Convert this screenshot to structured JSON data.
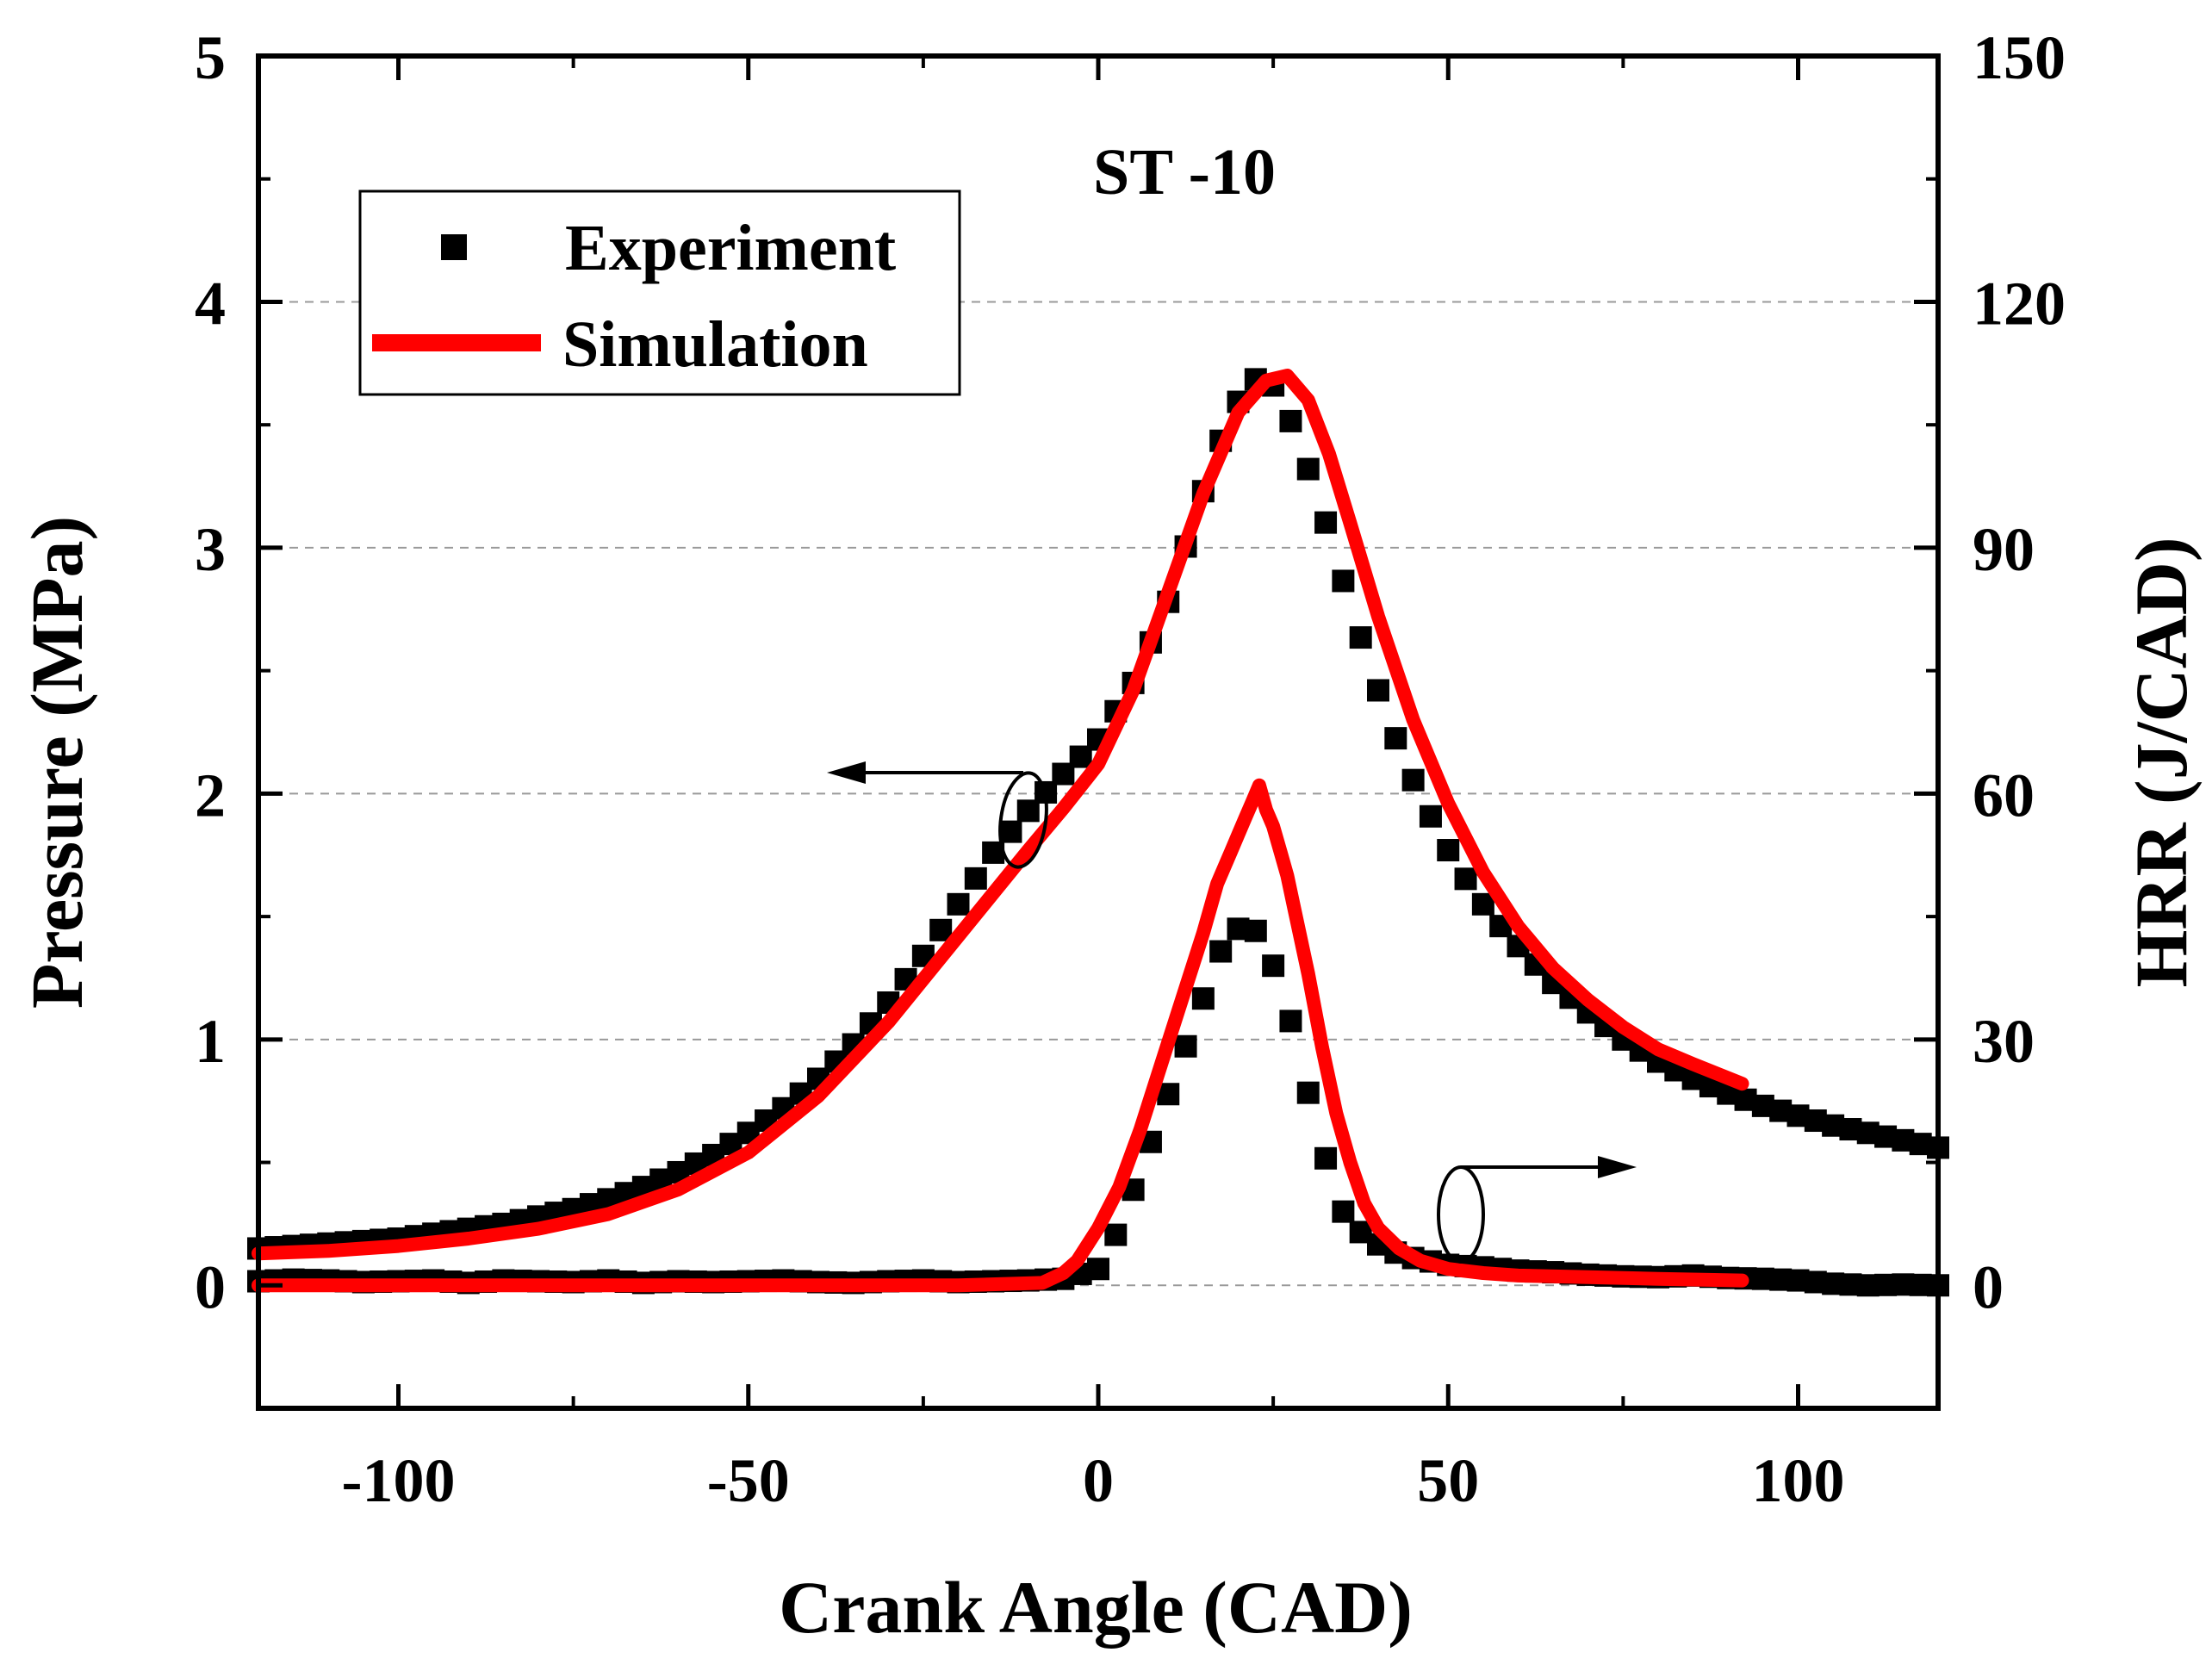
{
  "chart_data": {
    "type": "line",
    "title": "",
    "annotation": "ST -10",
    "xlabel": "Crank Angle (CAD)",
    "ylabel_left": "Pressure (MPa)",
    "ylabel_right": "HRR (J/CAD)",
    "xlim": [
      -120,
      120
    ],
    "ylim_left": [
      -0.5,
      5
    ],
    "ylim_right": [
      -15,
      150
    ],
    "x_ticks": [
      "-100",
      "-50",
      "0",
      "50",
      "100"
    ],
    "y_left_ticks": [
      "0",
      "1",
      "2",
      "3",
      "4",
      "5"
    ],
    "y_right_ticks": [
      "0",
      "30",
      "60",
      "90",
      "120",
      "150"
    ],
    "grid": "horizontal dashed",
    "legend_position": "top-left",
    "legend": [
      {
        "label": "Experiment",
        "marker": "square",
        "color": "#000000"
      },
      {
        "label": "Simulation",
        "marker": "line",
        "color": "#ff0000"
      }
    ],
    "series": [
      {
        "name": "Experiment",
        "quantity": "Pressure",
        "axis": "left",
        "color": "#000000",
        "x": [
          -120,
          -115,
          -110,
          -105,
          -100,
          -95,
          -90,
          -85,
          -80,
          -75,
          -70,
          -65,
          -60,
          -55,
          -50,
          -45,
          -40,
          -35,
          -30,
          -25,
          -20,
          -15,
          -10,
          -5,
          0,
          5,
          10,
          13,
          16,
          19,
          22,
          24,
          26,
          28,
          30,
          32,
          34,
          36,
          38,
          40,
          42,
          44,
          46,
          48,
          50,
          53,
          56,
          60,
          65,
          70,
          75,
          80,
          85,
          90,
          95,
          100,
          105,
          110,
          115,
          120
        ],
        "y": [
          0.15,
          0.16,
          0.17,
          0.18,
          0.19,
          0.21,
          0.23,
          0.25,
          0.28,
          0.31,
          0.35,
          0.4,
          0.46,
          0.53,
          0.62,
          0.72,
          0.84,
          0.98,
          1.15,
          1.34,
          1.55,
          1.76,
          1.93,
          2.08,
          2.22,
          2.45,
          2.78,
          3.05,
          3.32,
          3.55,
          3.68,
          3.7,
          3.62,
          3.48,
          3.32,
          3.15,
          2.96,
          2.77,
          2.59,
          2.42,
          2.26,
          2.12,
          1.99,
          1.88,
          1.77,
          1.63,
          1.51,
          1.38,
          1.23,
          1.11,
          1.0,
          0.91,
          0.84,
          0.78,
          0.73,
          0.69,
          0.65,
          0.62,
          0.59,
          0.56
        ]
      },
      {
        "name": "Simulation",
        "quantity": "Pressure",
        "axis": "left",
        "color": "#ff0000",
        "x": [
          -120,
          -110,
          -100,
          -90,
          -80,
          -70,
          -60,
          -50,
          -40,
          -30,
          -20,
          -10,
          -5,
          0,
          5,
          10,
          15,
          20,
          24,
          27,
          30,
          33,
          36,
          40,
          45,
          50,
          55,
          60,
          65,
          70,
          75,
          80,
          85,
          92
        ],
        "y": [
          0.13,
          0.14,
          0.16,
          0.19,
          0.23,
          0.29,
          0.39,
          0.54,
          0.77,
          1.07,
          1.42,
          1.77,
          1.94,
          2.12,
          2.42,
          2.82,
          3.22,
          3.55,
          3.68,
          3.7,
          3.6,
          3.38,
          3.1,
          2.72,
          2.3,
          1.96,
          1.68,
          1.46,
          1.29,
          1.16,
          1.05,
          0.96,
          0.9,
          0.82
        ]
      },
      {
        "name": "Experiment",
        "quantity": "HRR",
        "axis": "right",
        "color": "#000000",
        "x": [
          -120,
          -115,
          -110,
          -105,
          -100,
          -95,
          -90,
          -85,
          -80,
          -75,
          -70,
          -65,
          -60,
          -55,
          -50,
          -45,
          -40,
          -35,
          -30,
          -25,
          -20,
          -15,
          -10,
          -5,
          0,
          3,
          6,
          9,
          12,
          15,
          17,
          19,
          21,
          23,
          25,
          27,
          29,
          31,
          33,
          35,
          38,
          41,
          44,
          47,
          50,
          55,
          60,
          65,
          70,
          75,
          80,
          85,
          90,
          95,
          100,
          105,
          110,
          115,
          120
        ],
        "y": [
          0.5,
          0.7,
          0.6,
          0.4,
          0.5,
          0.6,
          0.3,
          0.6,
          0.5,
          0.4,
          0.6,
          0.3,
          0.5,
          0.4,
          0.5,
          0.6,
          0.4,
          0.3,
          0.5,
          0.6,
          0.4,
          0.5,
          0.6,
          0.8,
          2.0,
          7,
          14,
          21,
          28,
          35,
          40,
          43,
          44,
          43,
          39,
          34,
          27,
          20,
          14,
          9,
          6,
          4.5,
          3.5,
          3.0,
          2.5,
          2.2,
          1.8,
          1.6,
          1.3,
          1.1,
          1.0,
          1.2,
          0.9,
          0.8,
          0.6,
          0.2,
          0.0,
          0.1,
          0.0
        ]
      },
      {
        "name": "Simulation",
        "quantity": "HRR",
        "axis": "right",
        "color": "#ff0000",
        "x": [
          -120,
          -100,
          -80,
          -60,
          -40,
          -20,
          -8,
          -5,
          -3,
          0,
          3,
          6,
          9,
          12,
          15,
          17,
          19,
          20,
          21,
          22,
          23,
          24,
          25,
          26,
          27,
          28,
          30,
          32,
          34,
          36,
          38,
          40,
          43,
          46,
          50,
          55,
          60,
          70,
          80,
          92
        ],
        "y": [
          0,
          0,
          0,
          0,
          0,
          0,
          0.3,
          1.5,
          3,
          7,
          12,
          19,
          27,
          35,
          43,
          49,
          53,
          55,
          57,
          59,
          61,
          58,
          56,
          53,
          50,
          46,
          38,
          29,
          21,
          15,
          10,
          7,
          4.5,
          3,
          2,
          1.5,
          1.2,
          1.0,
          0.8,
          0.6
        ]
      }
    ],
    "annotations_arrows": [
      {
        "target": "left axis",
        "direction": "left"
      },
      {
        "target": "right axis",
        "direction": "right"
      }
    ]
  }
}
